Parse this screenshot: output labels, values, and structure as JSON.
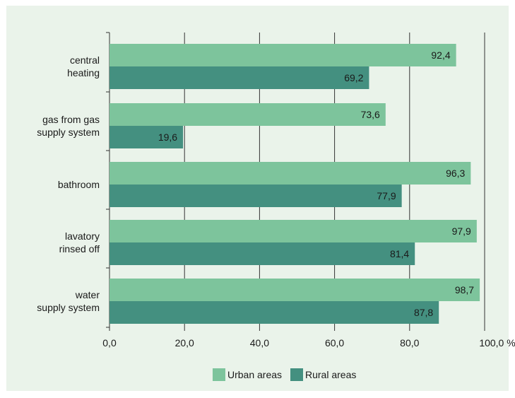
{
  "chart_data": {
    "type": "bar",
    "orientation": "horizontal",
    "categories": [
      [
        "central",
        "heating"
      ],
      [
        "gas from gas",
        "supply system"
      ],
      [
        "bathroom"
      ],
      [
        "lavatory",
        "rinsed off"
      ],
      [
        "water",
        "supply system"
      ]
    ],
    "series": [
      {
        "name": "Urban areas",
        "color": "#7dc49c",
        "values": [
          92.4,
          73.6,
          96.3,
          97.9,
          98.7
        ],
        "labels": [
          "92,4",
          "73,6",
          "96,3",
          "97,9",
          "98,7"
        ]
      },
      {
        "name": "Rural areas",
        "color": "#449080",
        "values": [
          69.2,
          19.6,
          77.9,
          81.4,
          87.8
        ],
        "labels": [
          "69,2",
          "19,6",
          "77,9",
          "81,4",
          "87,8"
        ]
      }
    ],
    "xlim": [
      0,
      100
    ],
    "xticks": [
      {
        "value": 0,
        "label": "0,0"
      },
      {
        "value": 20,
        "label": "20,0"
      },
      {
        "value": 40,
        "label": "40,0"
      },
      {
        "value": 60,
        "label": "60,0"
      },
      {
        "value": 80,
        "label": "80,0"
      },
      {
        "value": 100,
        "label": "100,0 %"
      }
    ],
    "grid": true,
    "legend": {
      "position": "bottom"
    },
    "background": "#eaf3ea",
    "gridline_color": "#333333"
  }
}
